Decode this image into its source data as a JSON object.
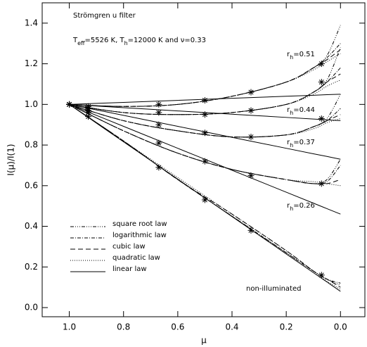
{
  "chart_data": {
    "type": "line",
    "title": "Strömgren u filter",
    "params": [
      {
        "t": "T"
      },
      {
        "t": "eff",
        "sub": true
      },
      {
        "t": "=5526 K, T"
      },
      {
        "t": "h",
        "sub": true
      },
      {
        "t": "=12000 K and ν=0.33"
      }
    ],
    "xlabel": "μ",
    "ylabel": "I(μ)/I(1)",
    "xlim": [
      1.1,
      -0.09
    ],
    "ylim": [
      -0.045,
      1.5
    ],
    "xticks": [
      {
        "value": 1.0,
        "label": "1.0"
      },
      0.8,
      0.6,
      0.4,
      0.2,
      {
        "value": 0.0,
        "label": "0.0"
      }
    ],
    "yticks": [
      {
        "value": 0.0,
        "label": "0.0"
      },
      0.2,
      0.4,
      0.6,
      0.8,
      {
        "value": 1.0,
        "label": "1.0"
      },
      1.2,
      1.4
    ],
    "color": "#000000",
    "laws": [
      {
        "name": "square root law",
        "dash": "5,2,1,2,1,2,1,2"
      },
      {
        "name": "logarithmic law",
        "dash": "5,2,1,2"
      },
      {
        "name": "cubic law",
        "dash": "7,4"
      },
      {
        "name": "quadratic law",
        "dash": "1,2"
      },
      {
        "name": "linear law",
        "dash": "none"
      }
    ],
    "x": [
      1.0,
      0.8,
      0.6,
      0.4,
      0.2,
      0.1,
      0.05,
      0.0
    ],
    "points_x": [
      1.0,
      0.93,
      0.67,
      0.5,
      0.33,
      0.07
    ],
    "groups": [
      {
        "label": [
          "r",
          "h",
          "=0.51"
        ],
        "curves": [
          [
            1,
            0.99,
            1.0,
            1.04,
            1.11,
            1.18,
            1.24,
            1.39
          ],
          [
            1,
            0.99,
            1.0,
            1.04,
            1.11,
            1.18,
            1.23,
            1.3
          ],
          [
            1,
            0.99,
            1.0,
            1.04,
            1.11,
            1.18,
            1.22,
            1.27
          ],
          [
            1,
            0.99,
            1.0,
            1.04,
            1.11,
            1.17,
            1.21,
            1.25
          ],
          [
            1,
            1.01,
            1.02,
            1.03,
            1.04,
            1.045,
            1.048,
            1.05
          ]
        ],
        "points": [
          1.0,
          0.99,
          1.0,
          1.02,
          1.06,
          1.2
        ]
      },
      {
        "label": [
          "r",
          "h",
          "=0.44"
        ],
        "curves": [
          [
            1,
            0.96,
            0.95,
            0.96,
            1.0,
            1.06,
            1.12,
            1.28
          ],
          [
            1,
            0.96,
            0.95,
            0.96,
            1.0,
            1.06,
            1.11,
            1.18
          ],
          [
            1,
            0.96,
            0.95,
            0.96,
            1.0,
            1.06,
            1.11,
            1.15
          ],
          [
            1,
            0.96,
            0.95,
            0.96,
            1.0,
            1.05,
            1.09,
            1.12
          ],
          [
            1,
            0.984,
            0.968,
            0.952,
            0.936,
            0.928,
            0.924,
            0.92
          ]
        ],
        "points": [
          1.0,
          0.98,
          0.96,
          0.95,
          0.97,
          1.11
        ]
      },
      {
        "label": [
          "r",
          "h",
          "=0.37"
        ],
        "curves": [
          [
            1,
            0.92,
            0.87,
            0.84,
            0.85,
            0.89,
            0.93,
            1.05
          ],
          [
            1,
            0.92,
            0.87,
            0.84,
            0.85,
            0.89,
            0.92,
            0.98
          ],
          [
            1,
            0.92,
            0.87,
            0.84,
            0.85,
            0.89,
            0.92,
            0.95
          ],
          [
            1,
            0.92,
            0.87,
            0.84,
            0.85,
            0.88,
            0.91,
            0.93
          ],
          [
            1,
            0.946,
            0.892,
            0.838,
            0.784,
            0.757,
            0.744,
            0.73
          ]
        ],
        "points": [
          1.0,
          0.97,
          0.9,
          0.86,
          0.84,
          0.93
        ]
      },
      {
        "label": [
          "r",
          "h",
          "=0.26"
        ],
        "curves": [
          [
            1,
            0.87,
            0.76,
            0.68,
            0.63,
            0.61,
            0.63,
            0.73
          ],
          [
            1,
            0.87,
            0.76,
            0.68,
            0.63,
            0.61,
            0.62,
            0.7
          ],
          [
            1,
            0.87,
            0.76,
            0.68,
            0.63,
            0.61,
            0.61,
            0.63
          ],
          [
            1,
            0.87,
            0.76,
            0.68,
            0.63,
            0.62,
            0.61,
            0.6
          ],
          [
            1,
            0.892,
            0.784,
            0.676,
            0.568,
            0.514,
            0.487,
            0.46
          ]
        ],
        "points": [
          1.0,
          0.96,
          0.81,
          0.72,
          0.65,
          0.61
        ]
      },
      {
        "label": [
          "non-illuminated"
        ],
        "curves": [
          [
            1,
            0.82,
            0.63,
            0.45,
            0.27,
            0.18,
            0.14,
            0.11
          ],
          [
            1,
            0.82,
            0.63,
            0.45,
            0.27,
            0.18,
            0.14,
            0.12
          ],
          [
            1,
            0.82,
            0.63,
            0.46,
            0.28,
            0.18,
            0.14,
            0.1
          ],
          [
            1,
            0.82,
            0.64,
            0.46,
            0.28,
            0.18,
            0.13,
            0.09
          ],
          [
            1,
            0.816,
            0.632,
            0.448,
            0.264,
            0.172,
            0.126,
            0.08
          ]
        ],
        "points": [
          1.0,
          0.94,
          0.69,
          0.53,
          0.38,
          0.16
        ]
      }
    ]
  }
}
